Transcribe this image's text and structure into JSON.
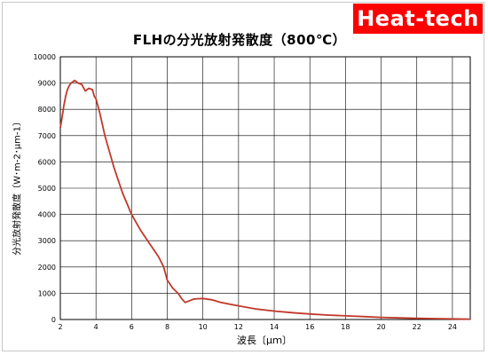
{
  "brand": {
    "text": "Heat-tech",
    "color": "#ff0000"
  },
  "chart_data": {
    "type": "line",
    "title": "FLHの分光放射発散度（800℃）",
    "xlabel": "波長〔μｍ〕",
    "ylabel": "分光放射発散度〔W･m-2･μm-1〕",
    "xlim": [
      2,
      25
    ],
    "ylim": [
      0,
      10000
    ],
    "xticks": [
      2,
      4,
      6,
      8,
      10,
      12,
      14,
      16,
      18,
      20,
      22,
      24
    ],
    "yticks": [
      0,
      1000,
      2000,
      3000,
      4000,
      5000,
      6000,
      7000,
      8000,
      9000,
      10000
    ],
    "grid": true,
    "line_color": "#c0392b",
    "series": [
      {
        "x": [
          2.0,
          2.1,
          2.2,
          2.3,
          2.4,
          2.5,
          2.6,
          2.7,
          2.8,
          3.0,
          3.2,
          3.4,
          3.6,
          3.8,
          3.9,
          4.0,
          4.2,
          4.5,
          5.0,
          5.5,
          6.0,
          6.5,
          7.0,
          7.5,
          7.8,
          8.0,
          8.3,
          8.6,
          8.8,
          9.0,
          9.2,
          9.5,
          10.0,
          10.5,
          11.0,
          12.0,
          13.0,
          14.0,
          15.0,
          16.0,
          17.0,
          18.0,
          19.0,
          20.0,
          21.0,
          22.0,
          23.0,
          24.0,
          25.0
        ],
        "y": [
          7300,
          7700,
          8150,
          8500,
          8750,
          8900,
          9000,
          9050,
          9100,
          9000,
          8950,
          8700,
          8800,
          8750,
          8500,
          8400,
          7900,
          7000,
          5800,
          4800,
          4000,
          3400,
          2900,
          2400,
          2000,
          1500,
          1200,
          1000,
          800,
          650,
          700,
          780,
          800,
          750,
          650,
          520,
          400,
          320,
          260,
          210,
          170,
          140,
          110,
          80,
          60,
          45,
          35,
          25,
          15
        ]
      }
    ]
  }
}
